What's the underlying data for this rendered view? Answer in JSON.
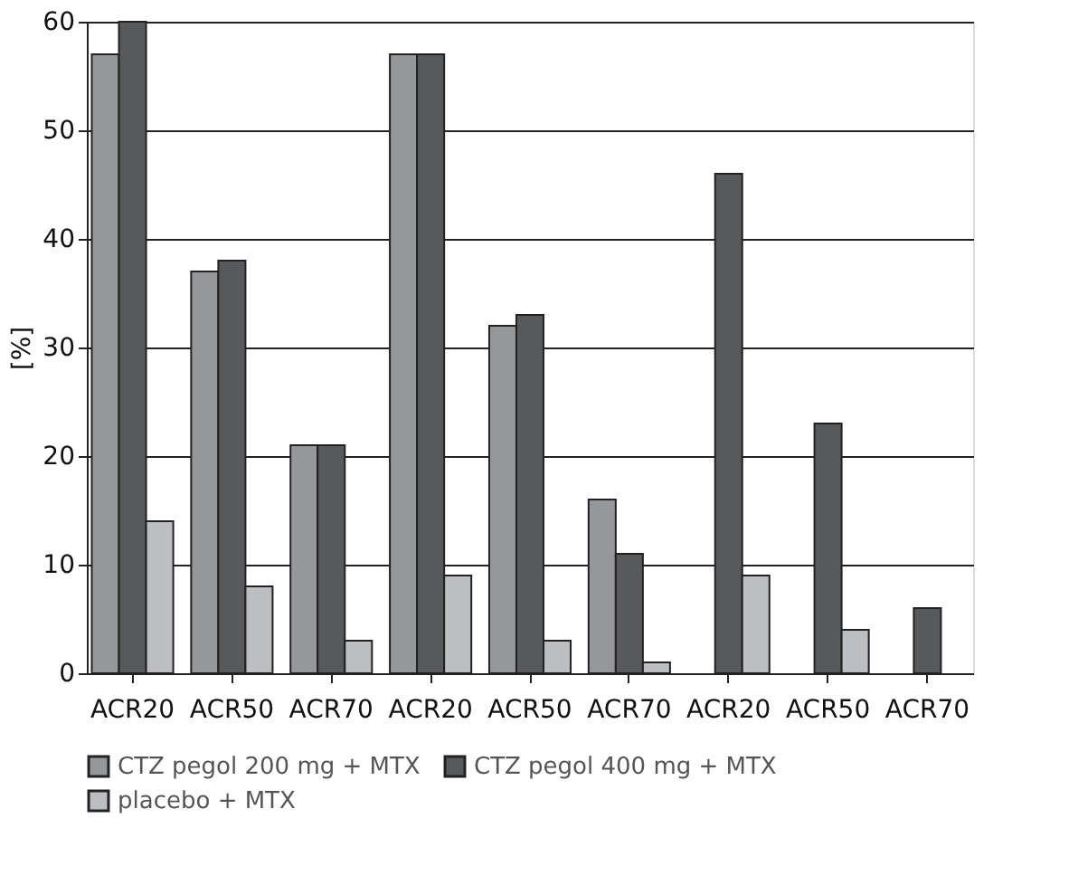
{
  "chart_data": {
    "type": "bar",
    "ylabel": "[%]",
    "categories": [
      "ACR20",
      "ACR50",
      "ACR70",
      "ACR20",
      "ACR50",
      "ACR70",
      "ACR20",
      "ACR50",
      "ACR70"
    ],
    "series": [
      {
        "name": "CTZ pegol 200 mg + MTX",
        "color": "#96979b",
        "values": [
          57,
          37,
          21,
          57,
          32,
          16,
          null,
          null,
          null
        ]
      },
      {
        "name": "CTZ pegol 400 mg + MTX",
        "color": "#58595b",
        "values": [
          60,
          38,
          21,
          57,
          33,
          11,
          46,
          23,
          6
        ]
      },
      {
        "name": "placebo + MTX",
        "color": "#bdbec2",
        "values": [
          14,
          8,
          3,
          9,
          3,
          1,
          9,
          4,
          null
        ]
      }
    ],
    "ylim": [
      0,
      60
    ],
    "yticks": [
      0,
      10,
      20,
      30,
      40,
      50,
      60
    ],
    "grid": "y",
    "legend": "bottom"
  }
}
